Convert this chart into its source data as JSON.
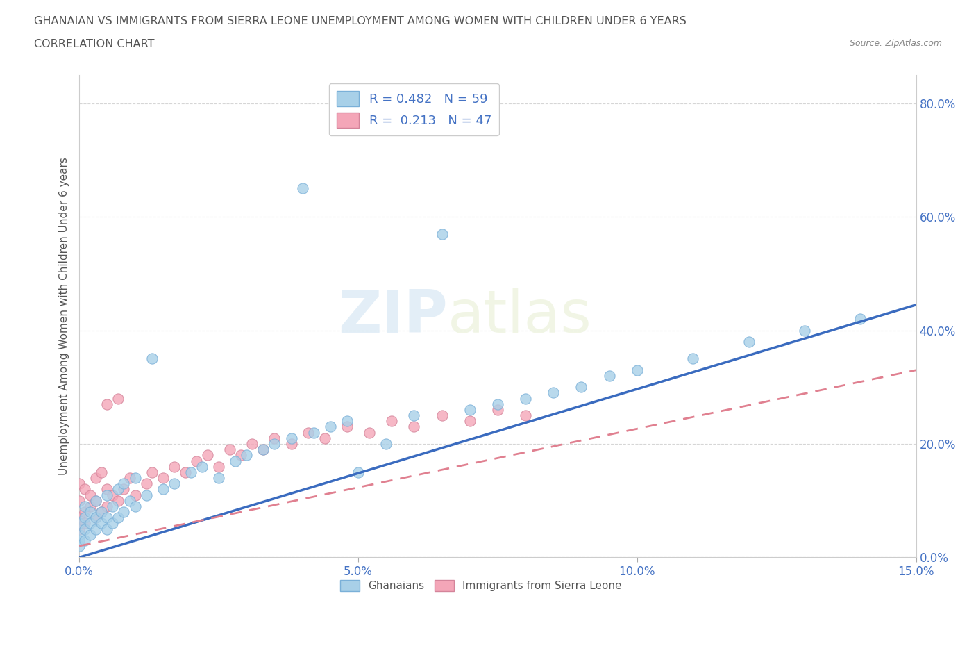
{
  "title_line1": "GHANAIAN VS IMMIGRANTS FROM SIERRA LEONE UNEMPLOYMENT AMONG WOMEN WITH CHILDREN UNDER 6 YEARS",
  "title_line2": "CORRELATION CHART",
  "source": "Source: ZipAtlas.com",
  "ylabel": "Unemployment Among Women with Children Under 6 years",
  "xmin": 0.0,
  "xmax": 0.15,
  "ymin": 0.0,
  "ymax": 0.85,
  "yticks": [
    0.0,
    0.2,
    0.4,
    0.6,
    0.8
  ],
  "ytick_labels": [
    "0.0%",
    "20.0%",
    "40.0%",
    "60.0%",
    "80.0%"
  ],
  "xticks": [
    0.0,
    0.05,
    0.1,
    0.15
  ],
  "xtick_labels": [
    "0.0%",
    "5.0%",
    "10.0%",
    "15.0%"
  ],
  "color_blue": "#a8d0e8",
  "color_pink": "#f4a6b8",
  "color_line_blue": "#3a6bbf",
  "color_line_pink": "#e08090",
  "color_text_blue": "#4472c4",
  "watermark_zip": "ZIP",
  "watermark_atlas": "atlas",
  "blue_line_x0": 0.0,
  "blue_line_y0": 0.0,
  "blue_line_x1": 0.15,
  "blue_line_y1": 0.445,
  "pink_line_x0": 0.0,
  "pink_line_y0": 0.02,
  "pink_line_x1": 0.15,
  "pink_line_y1": 0.33,
  "ghanaians_x": [
    0.0,
    0.0,
    0.0,
    0.0,
    0.001,
    0.001,
    0.001,
    0.001,
    0.002,
    0.002,
    0.002,
    0.003,
    0.003,
    0.003,
    0.004,
    0.004,
    0.005,
    0.005,
    0.005,
    0.006,
    0.006,
    0.007,
    0.007,
    0.008,
    0.008,
    0.009,
    0.01,
    0.01,
    0.012,
    0.013,
    0.015,
    0.017,
    0.02,
    0.022,
    0.025,
    0.028,
    0.03,
    0.033,
    0.035,
    0.038,
    0.04,
    0.042,
    0.045,
    0.048,
    0.05,
    0.055,
    0.06,
    0.065,
    0.07,
    0.075,
    0.08,
    0.085,
    0.09,
    0.095,
    0.1,
    0.11,
    0.12,
    0.13,
    0.14
  ],
  "ghanaians_y": [
    0.02,
    0.03,
    0.04,
    0.06,
    0.03,
    0.05,
    0.07,
    0.09,
    0.04,
    0.06,
    0.08,
    0.05,
    0.07,
    0.1,
    0.06,
    0.08,
    0.05,
    0.07,
    0.11,
    0.06,
    0.09,
    0.07,
    0.12,
    0.08,
    0.13,
    0.1,
    0.09,
    0.14,
    0.11,
    0.35,
    0.12,
    0.13,
    0.15,
    0.16,
    0.14,
    0.17,
    0.18,
    0.19,
    0.2,
    0.21,
    0.65,
    0.22,
    0.23,
    0.24,
    0.15,
    0.2,
    0.25,
    0.57,
    0.26,
    0.27,
    0.28,
    0.29,
    0.3,
    0.32,
    0.33,
    0.35,
    0.38,
    0.4,
    0.42
  ],
  "sierra_leone_x": [
    0.0,
    0.0,
    0.0,
    0.0,
    0.001,
    0.001,
    0.001,
    0.002,
    0.002,
    0.003,
    0.003,
    0.003,
    0.004,
    0.004,
    0.005,
    0.005,
    0.005,
    0.006,
    0.007,
    0.007,
    0.008,
    0.009,
    0.01,
    0.012,
    0.013,
    0.015,
    0.017,
    0.019,
    0.021,
    0.023,
    0.025,
    0.027,
    0.029,
    0.031,
    0.033,
    0.035,
    0.038,
    0.041,
    0.044,
    0.048,
    0.052,
    0.056,
    0.06,
    0.065,
    0.07,
    0.075,
    0.08
  ],
  "sierra_leone_y": [
    0.05,
    0.07,
    0.1,
    0.13,
    0.06,
    0.08,
    0.12,
    0.09,
    0.11,
    0.07,
    0.1,
    0.14,
    0.08,
    0.15,
    0.09,
    0.12,
    0.27,
    0.11,
    0.1,
    0.28,
    0.12,
    0.14,
    0.11,
    0.13,
    0.15,
    0.14,
    0.16,
    0.15,
    0.17,
    0.18,
    0.16,
    0.19,
    0.18,
    0.2,
    0.19,
    0.21,
    0.2,
    0.22,
    0.21,
    0.23,
    0.22,
    0.24,
    0.23,
    0.25,
    0.24,
    0.26,
    0.25
  ]
}
